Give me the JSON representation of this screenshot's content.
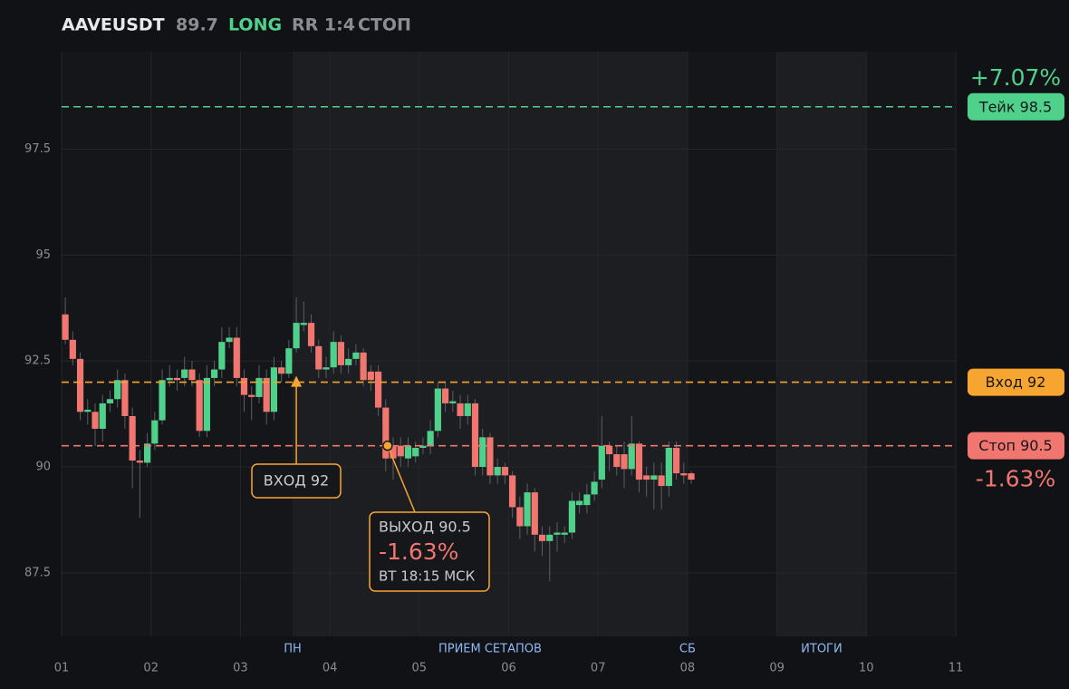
{
  "chart_data": {
    "type": "candlestick",
    "header": {
      "symbol": "AAVEUSDT",
      "price": 89.7,
      "side": "LONG",
      "rr": "RR 1:4",
      "status": "СТОП"
    },
    "up_color": "#4fd18b",
    "down_color": "#f0766f",
    "xlim": [
      0,
      240
    ],
    "xticks": [
      {
        "value": 0,
        "label": "01"
      },
      {
        "value": 24,
        "label": "02"
      },
      {
        "value": 48,
        "label": "03"
      },
      {
        "value": 72,
        "label": "04"
      },
      {
        "value": 96,
        "label": "05"
      },
      {
        "value": 120,
        "label": "06"
      },
      {
        "value": 144,
        "label": "07"
      },
      {
        "value": 168,
        "label": "08"
      },
      {
        "value": 192,
        "label": "09"
      },
      {
        "value": 216,
        "label": "10"
      },
      {
        "value": 240,
        "label": "11"
      }
    ],
    "ylim": [
      86,
      99.8
    ],
    "yticks": [
      87.5,
      90,
      92.5,
      95,
      97.5
    ],
    "grid": true,
    "regions": [
      {
        "start": 62,
        "end": 168
      },
      {
        "start": 192,
        "end": 216
      }
    ],
    "session_labels": [
      {
        "x": 62,
        "label": "ПН"
      },
      {
        "x": 115,
        "label": "ПРИЕМ СЕТАПОВ"
      },
      {
        "x": 168,
        "label": "СБ"
      },
      {
        "x": 204,
        "label": "ИТОГИ"
      }
    ],
    "x": [
      1,
      3,
      5,
      7,
      9,
      11,
      13,
      15,
      17,
      19,
      21,
      23,
      25,
      27,
      29,
      31,
      33,
      35,
      37,
      39,
      41,
      43,
      45,
      47,
      49,
      51,
      53,
      55,
      57,
      59,
      61,
      63,
      65,
      67,
      69,
      71,
      73,
      75,
      77,
      79,
      81,
      83,
      85,
      87,
      89,
      91,
      93,
      95,
      97,
      99,
      101,
      103,
      105,
      107,
      109,
      111,
      113,
      115,
      117,
      119,
      121,
      123,
      125,
      127,
      129,
      131,
      133,
      135,
      137,
      139,
      141,
      143,
      145,
      147,
      149,
      151,
      153,
      155,
      157,
      159,
      161,
      163,
      165,
      167,
      169
    ],
    "open": [
      93.6,
      93.0,
      92.55,
      91.3,
      91.3,
      90.9,
      91.5,
      91.6,
      92.05,
      91.2,
      90.15,
      90.1,
      90.55,
      91.1,
      92.05,
      92.1,
      92.1,
      92.3,
      92.05,
      90.85,
      92.1,
      92.3,
      92.95,
      93.05,
      92.1,
      91.7,
      91.65,
      92.1,
      91.3,
      92.35,
      92.2,
      92.8,
      93.35,
      93.4,
      92.85,
      92.3,
      92.35,
      92.95,
      92.4,
      92.55,
      92.7,
      92.25,
      92.25,
      91.4,
      90.5,
      90.5,
      90.2,
      90.25,
      90.45,
      90.5,
      90.85,
      91.85,
      91.5,
      91.5,
      91.2,
      91.5,
      90.0,
      90.7,
      89.8,
      90.0,
      89.8,
      89.05,
      88.6,
      89.4,
      88.4,
      88.25,
      88.4,
      88.4,
      88.45,
      89.1,
      89.1,
      89.35,
      89.7,
      90.5,
      90.3,
      90.3,
      89.95,
      90.55,
      89.8,
      89.7,
      89.8,
      89.55,
      90.45,
      89.85,
      89.85
    ],
    "high": [
      94.0,
      93.2,
      92.7,
      91.6,
      91.5,
      91.7,
      91.8,
      92.3,
      92.2,
      91.4,
      90.4,
      90.8,
      91.3,
      92.3,
      92.4,
      92.3,
      92.6,
      92.5,
      92.2,
      92.4,
      92.5,
      93.3,
      93.3,
      93.3,
      92.3,
      91.9,
      92.4,
      92.3,
      92.6,
      92.5,
      93.0,
      94.0,
      93.9,
      93.6,
      93.0,
      92.6,
      93.2,
      93.1,
      92.8,
      92.9,
      92.8,
      92.4,
      92.4,
      91.6,
      90.7,
      90.7,
      90.7,
      90.6,
      90.7,
      91.1,
      92.0,
      92.0,
      91.8,
      91.7,
      91.7,
      91.6,
      90.9,
      90.8,
      90.2,
      90.1,
      89.9,
      89.3,
      89.6,
      89.5,
      88.6,
      88.6,
      88.7,
      88.6,
      89.4,
      89.4,
      89.6,
      89.9,
      91.2,
      90.6,
      90.5,
      90.6,
      91.2,
      90.6,
      90.0,
      90.1,
      90.1,
      90.6,
      90.6,
      90.1,
      89.9
    ],
    "low": [
      92.9,
      92.4,
      91.1,
      91.0,
      90.5,
      90.6,
      91.3,
      91.4,
      90.9,
      89.5,
      88.8,
      90.0,
      90.4,
      91.0,
      91.9,
      91.8,
      91.9,
      91.9,
      90.7,
      90.7,
      91.9,
      92.1,
      92.8,
      91.9,
      91.3,
      91.1,
      91.5,
      91.0,
      91.1,
      92.0,
      92.1,
      92.7,
      93.2,
      92.7,
      92.1,
      92.1,
      92.2,
      92.2,
      92.2,
      92.4,
      91.9,
      91.8,
      91.2,
      89.9,
      89.7,
      90.0,
      90.0,
      90.1,
      90.3,
      90.3,
      90.7,
      91.3,
      91.3,
      90.9,
      91.0,
      89.8,
      89.8,
      89.6,
      89.6,
      89.6,
      88.8,
      88.3,
      88.4,
      88.0,
      87.9,
      87.3,
      88.0,
      88.2,
      88.3,
      88.9,
      88.9,
      89.2,
      89.5,
      89.9,
      89.8,
      89.5,
      89.8,
      89.4,
      89.3,
      89.0,
      89.0,
      89.3,
      89.7,
      89.6,
      89.6
    ],
    "close": [
      93.0,
      92.55,
      91.3,
      91.35,
      90.9,
      91.5,
      91.6,
      92.05,
      91.2,
      90.15,
      90.1,
      90.55,
      91.1,
      92.05,
      92.1,
      92.05,
      92.3,
      92.05,
      90.85,
      92.1,
      92.3,
      92.95,
      93.05,
      92.1,
      91.7,
      91.65,
      92.1,
      91.3,
      92.35,
      92.2,
      92.8,
      93.4,
      93.4,
      92.85,
      92.3,
      92.35,
      92.95,
      92.4,
      92.55,
      92.7,
      92.05,
      92.05,
      91.4,
      90.2,
      90.2,
      90.25,
      90.5,
      90.45,
      90.5,
      90.85,
      91.85,
      91.5,
      91.55,
      91.2,
      91.5,
      90.0,
      90.7,
      89.8,
      90.0,
      89.8,
      89.05,
      88.6,
      89.4,
      88.4,
      88.25,
      88.4,
      88.45,
      88.45,
      89.2,
      89.2,
      89.35,
      89.65,
      90.5,
      90.3,
      90.0,
      89.95,
      90.55,
      89.7,
      89.7,
      89.8,
      89.55,
      90.45,
      89.85,
      89.8,
      89.7
    ],
    "levels": [
      {
        "value": 98.5,
        "label": "Тейк 98.5",
        "color": "#4fd18b",
        "change": {
          "value": 7.07,
          "label": "+7.07%"
        }
      },
      {
        "value": 92,
        "label": "Вход 92",
        "color": "#f7a531"
      },
      {
        "value": 90.5,
        "label": "Стоп 90.5",
        "color": "#f0766f",
        "change": {
          "value": -1.63,
          "label": "-1.63%"
        }
      }
    ],
    "entry": {
      "x": 63,
      "y": 92,
      "label": "ВХОД 92"
    },
    "exit": {
      "x": 87.5,
      "y": 90.5,
      "label": "ВЫХОД 90.5",
      "change": {
        "value": -1.63,
        "label": "-1.63%"
      },
      "time": "ВТ 18:15 МСК"
    }
  }
}
